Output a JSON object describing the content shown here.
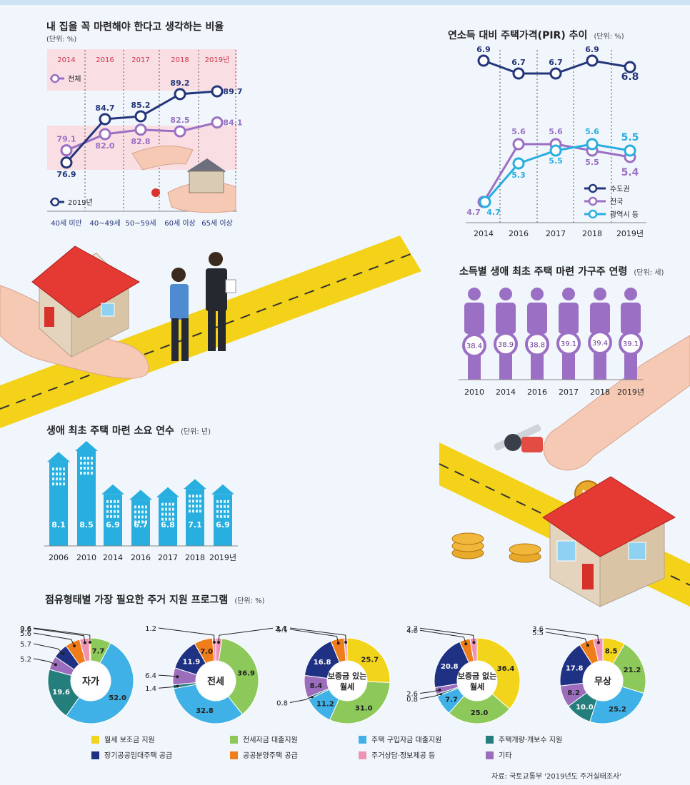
{
  "chart_data": [
    {
      "type": "line",
      "title": "내 집을 꼭 마련해야 한다고 생각하는 비율",
      "unit": "(단위: %)",
      "years": [
        "2014",
        "2016",
        "2017",
        "2018",
        "2019년"
      ],
      "series": [
        {
          "name": "전체",
          "color": "#9b6fc4",
          "values": [
            79.1,
            82.0,
            82.8,
            82.5,
            84.1
          ]
        }
      ],
      "age_series": {
        "name": "2019년",
        "color": "#24367a",
        "categories": [
          "40세 미만",
          "40~49세",
          "50~59세",
          "60세 이상",
          "65세 이상"
        ],
        "values": [
          76.9,
          84.7,
          85.2,
          89.2,
          89.7
        ]
      }
    },
    {
      "type": "line",
      "title": "연소득 대비 주택가격(PIR) 추이",
      "unit": "(단위: %)",
      "categories": [
        "2014",
        "2016",
        "2017",
        "2018",
        "2019년"
      ],
      "series": [
        {
          "name": "수도권",
          "color": "#24367a",
          "values": [
            6.9,
            6.7,
            6.7,
            6.9,
            6.8
          ]
        },
        {
          "name": "전국",
          "color": "#9b6fc4",
          "values": [
            4.7,
            5.6,
            5.6,
            5.5,
            5.4
          ]
        },
        {
          "name": "광역시 등",
          "color": "#29aee0",
          "values": [
            4.7,
            5.3,
            5.5,
            5.6,
            5.5
          ]
        }
      ]
    },
    {
      "type": "bar",
      "title": "소득별 생애 최초 주택 마련 가구주 연령",
      "unit": "(단위: 세)",
      "categories": [
        "2010",
        "2014",
        "2016",
        "2017",
        "2018",
        "2019년"
      ],
      "values": [
        38.4,
        38.9,
        38.8,
        39.1,
        39.4,
        39.1
      ],
      "color": "#9b6fc4"
    },
    {
      "type": "bar",
      "title": "생애 최초 주택 마련 소요 연수",
      "unit": "(단위: 년)",
      "categories": [
        "2006",
        "2010",
        "2014",
        "2016",
        "2017",
        "2018",
        "2019년"
      ],
      "values": [
        8.1,
        8.5,
        6.9,
        6.7,
        6.8,
        7.1,
        6.9
      ],
      "color": "#29aee0"
    },
    {
      "type": "pie",
      "title": "점유형태별 가장 필요한 주거 지원 프로그램",
      "unit": "(단위: %)",
      "legend": [
        {
          "name": "월세 보조금 지원",
          "color": "#f2d51a"
        },
        {
          "name": "전세자금 대출지원",
          "color": "#8dc85a"
        },
        {
          "name": "주택 구입자금 대출지원",
          "color": "#3fb1e6"
        },
        {
          "name": "주택개량·개보수 지원",
          "color": "#237e7c"
        },
        {
          "name": "장기공공임대주택 공급",
          "color": "#1f3183"
        },
        {
          "name": "공공분양주택 공급",
          "color": "#ef7d1a"
        },
        {
          "name": "주거상담·정보제공 등",
          "color": "#ef93b4"
        },
        {
          "name": "기타",
          "color": "#9c6dbd"
        }
      ],
      "donuts": [
        {
          "name": "자가",
          "values": [
            0,
            7.7,
            52.0,
            19.6,
            5.2,
            5.7,
            5.6,
            3.6,
            0.6
          ],
          "order": [
            "월세 보조금 지원",
            "전세자금 대출지원",
            "주택 구입자금 대출지원",
            "주택개량·개보수 지원",
            "기타",
            "장기공공임대주택 공급",
            "공공분양주택 공급",
            "주거상담·정보제공 등",
            "월세 보조금 지원"
          ]
        },
        {
          "name": "전세",
          "values": [
            2.4,
            36.9,
            32.8,
            1.4,
            6.4,
            11.9,
            7.0,
            1.2
          ]
        },
        {
          "name": "보증금 있는 월세",
          "values": [
            25.7,
            31.0,
            11.2,
            0.8,
            8.4,
            16.8,
            5.1,
            1.1
          ]
        },
        {
          "name": "보증금 없는 월세",
          "values": [
            36.4,
            25.0,
            7.7,
            0.8,
            2.6,
            20.8,
            4.0,
            2.7
          ]
        },
        {
          "name": "무상",
          "values": [
            8.5,
            21.2,
            25.2,
            10.0,
            8.2,
            17.8,
            5.5,
            3.6
          ]
        }
      ]
    }
  ],
  "source": "자료: 국토교통부 '2019년도 주거실태조사'"
}
